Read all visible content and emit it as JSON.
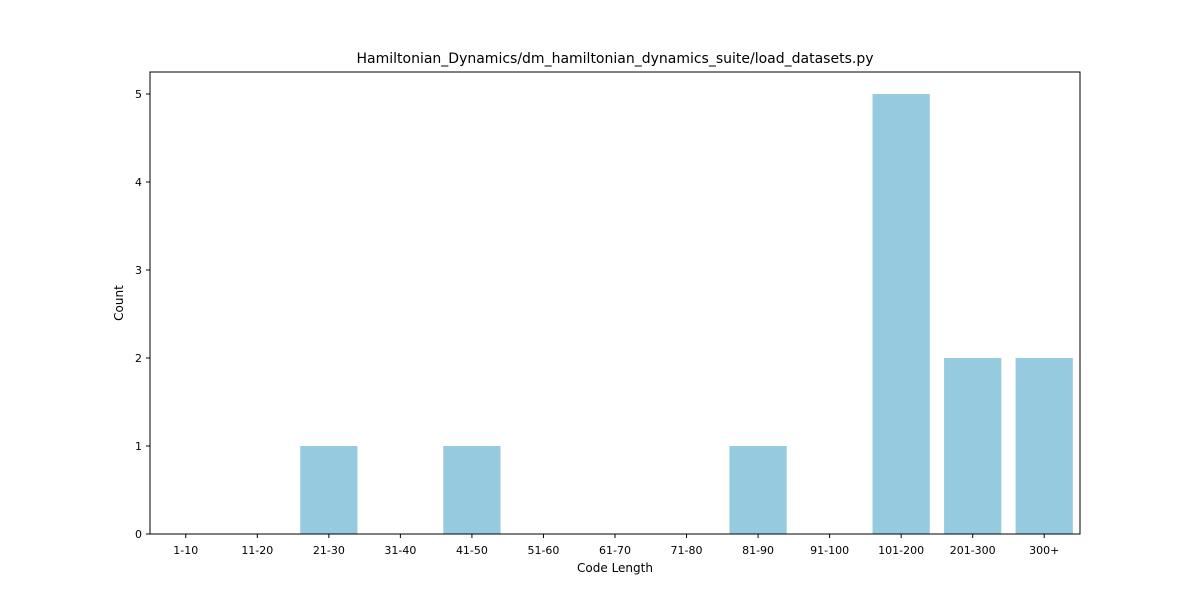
{
  "chart_data": {
    "type": "bar",
    "title": "Hamiltonian_Dynamics/dm_hamiltonian_dynamics_suite/load_datasets.py",
    "xlabel": "Code Length",
    "ylabel": "Count",
    "categories": [
      "1-10",
      "11-20",
      "21-30",
      "31-40",
      "41-50",
      "51-60",
      "61-70",
      "71-80",
      "81-90",
      "91-100",
      "101-200",
      "201-300",
      "300+"
    ],
    "values": [
      0,
      0,
      1,
      0,
      1,
      0,
      0,
      0,
      1,
      0,
      5,
      2,
      2
    ],
    "ylim": [
      0,
      5.25
    ],
    "yticks": [
      0,
      1,
      2,
      3,
      4,
      5
    ],
    "grid": false,
    "bar_color": "#96cadf"
  }
}
